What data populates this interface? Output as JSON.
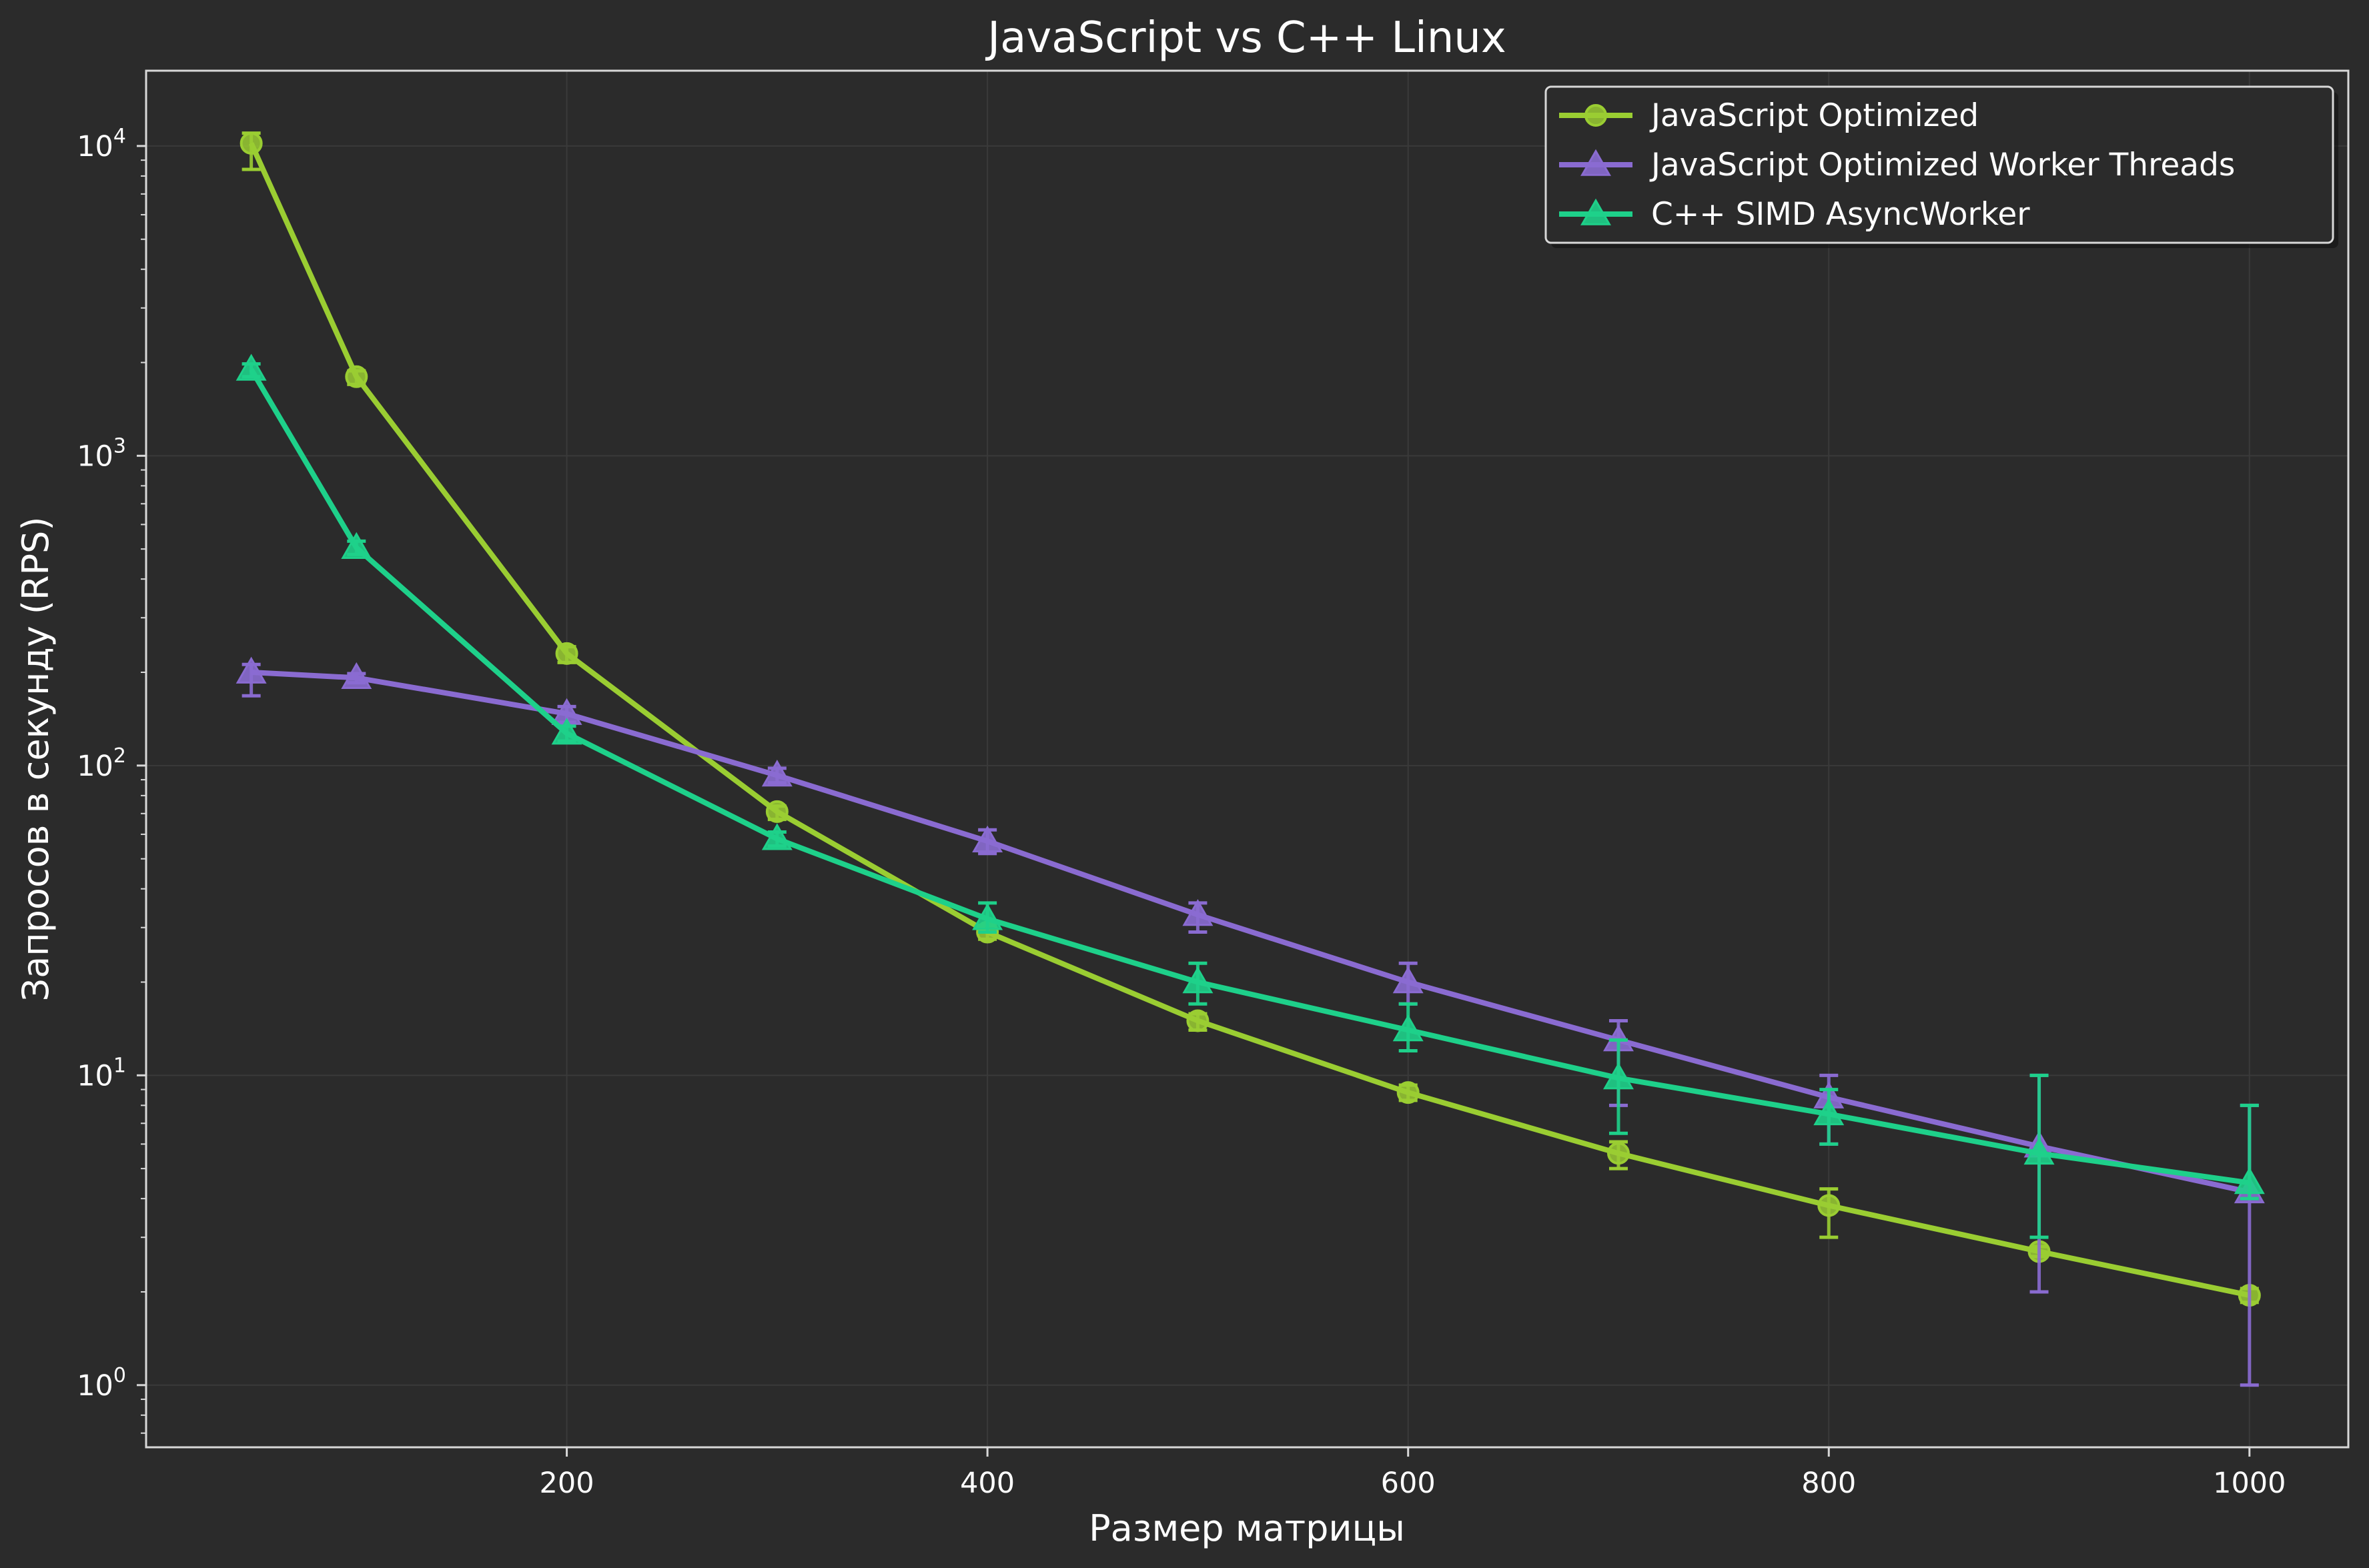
{
  "chart_data": {
    "type": "line",
    "title": "JavaScript vs C++ Linux",
    "xlabel": "Размер матрицы",
    "ylabel": "Запросов в секунду (RPS)",
    "y_scale": "log",
    "xlim": [
      0,
      1047
    ],
    "ylim": [
      0.63,
      17500
    ],
    "x_ticks": [
      200,
      400,
      600,
      800,
      1000
    ],
    "x_tick_labels": [
      "200",
      "400",
      "600",
      "800",
      "1000"
    ],
    "y_ticks": [
      1,
      10,
      100,
      1000,
      10000
    ],
    "y_tick_labels": [
      {
        "base": "10",
        "exp": "0"
      },
      {
        "base": "10",
        "exp": "1"
      },
      {
        "base": "10",
        "exp": "2"
      },
      {
        "base": "10",
        "exp": "3"
      },
      {
        "base": "10",
        "exp": "4"
      }
    ],
    "grid": true,
    "legend_position": "top-right",
    "x": [
      50,
      100,
      200,
      300,
      400,
      500,
      600,
      700,
      800,
      900,
      1000
    ],
    "series": [
      {
        "name": "JavaScript Optimized",
        "color": "#9acd32",
        "marker": "circle",
        "values": [
          10200,
          1800,
          230,
          71,
          29,
          15,
          8.8,
          5.6,
          3.8,
          2.7,
          1.95
        ],
        "err_low": [
          8400,
          1700,
          215,
          67,
          27.5,
          14,
          8.3,
          5.0,
          3.0,
          2.6,
          1.85
        ],
        "err_high": [
          11000,
          1880,
          242,
          74,
          30.5,
          15.8,
          9.3,
          6.1,
          4.3,
          2.8,
          2.05
        ]
      },
      {
        "name": "JavaScript Optimized Worker Threads",
        "color": "#8a6bd1",
        "marker": "triangle",
        "values": [
          200,
          192,
          147,
          93,
          57,
          33,
          20,
          13,
          8.5,
          5.9,
          4.2
        ],
        "err_low": [
          168,
          185,
          138,
          88,
          52,
          29,
          17,
          8,
          6,
          2,
          1
        ],
        "err_high": [
          212,
          198,
          155,
          98,
          62,
          36,
          23,
          15,
          10,
          10,
          8
        ]
      },
      {
        "name": "C++ SIMD AsyncWorker",
        "color": "#1ed08a",
        "marker": "triangle",
        "values": [
          1900,
          505,
          127,
          58,
          32,
          20,
          14,
          9.8,
          7.5,
          5.6,
          4.5
        ],
        "err_low": [
          1800,
          480,
          120,
          55,
          29,
          17,
          12,
          6.5,
          6,
          3,
          4
        ],
        "err_high": [
          1980,
          530,
          134,
          61,
          36,
          23,
          17,
          13,
          9,
          10,
          8
        ]
      }
    ]
  }
}
